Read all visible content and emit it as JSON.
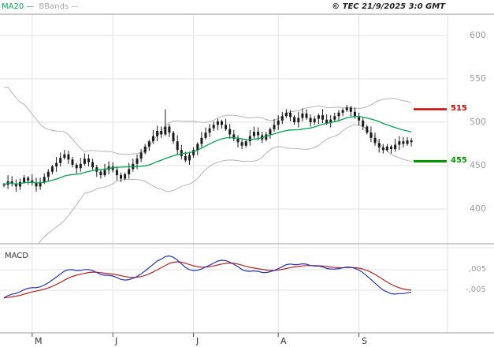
{
  "header": {
    "legend": [
      {
        "label": "MA20",
        "swatch": "—",
        "color": "#00a651"
      },
      {
        "label": "BBands",
        "swatch": "—",
        "color": "#a8a8a8"
      }
    ],
    "copyright": "© TEC 21/9/2025 3:0 GMT"
  },
  "chart_data": {
    "type": "candlestick",
    "panels": [
      "price",
      "macd"
    ],
    "y_axis": {
      "values": [
        600,
        550,
        500,
        450,
        400
      ],
      "range": [
        400,
        600
      ]
    },
    "x_axis": {
      "labels": [
        "M",
        "J",
        "J",
        "A",
        "S"
      ],
      "tick_indices": [
        7,
        27,
        47,
        68,
        88
      ]
    },
    "levels": {
      "resistance": {
        "label": "515",
        "value": 515,
        "color": "#cc0000"
      },
      "support": {
        "label": "455",
        "value": 455,
        "color": "#009900"
      }
    },
    "macd_label": "MACD",
    "macd_axis": {
      "upper_label": ",005",
      "lower_label": "-,005",
      "upper_value": 0.005,
      "lower_value": -0.005
    },
    "indicators": {
      "ma_period": 20,
      "bb_period": 20,
      "macd_params": [
        12,
        26,
        9
      ]
    },
    "candles": {
      "open": [
        427,
        428,
        432,
        429,
        426,
        431,
        436,
        433,
        430,
        426,
        431,
        437,
        443,
        449,
        453,
        459,
        463,
        457,
        451,
        447,
        452,
        458,
        454,
        448,
        443,
        439,
        445,
        449,
        445,
        439,
        435,
        440,
        446,
        452,
        458,
        465,
        472,
        478,
        484,
        490,
        486,
        495,
        488,
        478,
        468,
        461,
        456,
        462,
        468,
        475,
        482,
        488,
        493,
        497,
        501,
        497,
        492,
        486,
        481,
        477,
        473,
        478,
        484,
        489,
        485,
        480,
        486,
        492,
        497,
        502,
        507,
        511,
        506,
        500,
        505,
        510,
        505,
        500,
        504,
        508,
        503,
        499,
        503,
        507,
        511,
        514,
        517,
        512,
        507,
        502,
        495,
        488,
        482,
        476,
        471,
        468,
        472,
        469,
        474,
        478,
        475,
        479
      ],
      "high": [
        430,
        439,
        438,
        434,
        435,
        439,
        438,
        440,
        436,
        436,
        441,
        446,
        451,
        460,
        465,
        468,
        467,
        460,
        453,
        459,
        464,
        463,
        458,
        451,
        445,
        452,
        455,
        454,
        449,
        442,
        442,
        453,
        458,
        463,
        469,
        475,
        480,
        491,
        496,
        495,
        515,
        498,
        490,
        485,
        474,
        466,
        466,
        471,
        477,
        489,
        494,
        498,
        501,
        504,
        503,
        504,
        498,
        491,
        485,
        480,
        480,
        491,
        495,
        494,
        489,
        489,
        494,
        504,
        508,
        512,
        515,
        514,
        508,
        512,
        516,
        515,
        509,
        507,
        510,
        515,
        509,
        508,
        511,
        514,
        516,
        520,
        519,
        517,
        511,
        505,
        497,
        495,
        488,
        481,
        475,
        475,
        474,
        481,
        484,
        483,
        483,
        482
      ],
      "low": [
        425,
        423,
        426,
        420,
        422,
        429,
        428,
        427,
        420,
        422,
        429,
        432,
        440,
        443,
        449,
        457,
        452,
        448,
        441,
        443,
        450,
        449,
        445,
        437,
        435,
        437,
        440,
        442,
        433,
        431,
        433,
        435,
        443,
        446,
        454,
        463,
        467,
        475,
        478,
        482,
        484,
        483,
        475,
        462,
        457,
        454,
        451,
        459,
        462,
        471,
        480,
        483,
        490,
        491,
        493,
        490,
        481,
        478,
        471,
        469,
        471,
        473,
        481,
        479,
        476,
        478,
        481,
        489,
        491,
        498,
        505,
        501,
        497,
        494,
        501,
        503,
        495,
        497,
        498,
        499,
        497,
        494,
        500,
        501,
        507,
        512,
        507,
        504,
        496,
        491,
        486,
        477,
        473,
        465,
        464,
        466,
        464,
        466,
        468,
        471,
        473,
        472
      ],
      "close": [
        428,
        432,
        429,
        426,
        431,
        436,
        433,
        430,
        426,
        431,
        437,
        443,
        449,
        453,
        459,
        463,
        457,
        451,
        447,
        452,
        458,
        454,
        448,
        443,
        439,
        445,
        449,
        445,
        439,
        435,
        440,
        446,
        452,
        458,
        465,
        472,
        478,
        484,
        490,
        486,
        495,
        488,
        478,
        468,
        461,
        456,
        462,
        468,
        475,
        482,
        488,
        493,
        497,
        501,
        497,
        492,
        486,
        481,
        477,
        473,
        478,
        484,
        489,
        485,
        480,
        486,
        492,
        497,
        502,
        507,
        511,
        506,
        500,
        505,
        510,
        505,
        500,
        504,
        508,
        503,
        499,
        503,
        507,
        511,
        514,
        517,
        512,
        507,
        502,
        495,
        488,
        482,
        476,
        471,
        468,
        472,
        469,
        474,
        478,
        475,
        479,
        477
      ]
    }
  },
  "colors": {
    "ma": "#00a651",
    "bands": "#b5b5b5",
    "candle": "#1a1a1a",
    "grid": "#e0e0e0",
    "frame": "#999999",
    "tick": "#444444",
    "macd_line": "#2233bb",
    "macd_signal": "#bb2222",
    "axis_text": "#9a9a9a"
  }
}
